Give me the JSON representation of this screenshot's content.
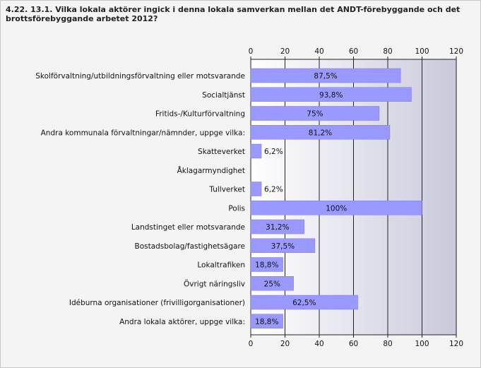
{
  "chart_data": {
    "type": "bar",
    "orientation": "horizontal",
    "title": "4.22. 13.1. Vilka lokala aktörer ingick i denna lokala samverkan mellan det ANDT-förebyggande och det brottsförebyggande arbetet 2012?",
    "categories": [
      "Skolförvaltning/utbildningsförvaltning eller motsvarande",
      "Socialtjänst",
      "Fritids-/Kulturförvaltning",
      "Andra kommunala förvaltningar/nämnder, uppge vilka:",
      "Skatteverket",
      "Åklagarmyndighet",
      "Tullverket",
      "Polis",
      "Landstinget eller motsvarande",
      "Bostadsbolag/fastighetsägare",
      "Lokaltrafiken",
      "Övrigt näringsliv",
      "Idéburna organisationer (frivilligorganisationer)",
      "Andra lokala aktörer, uppge vilka:"
    ],
    "values": [
      87.5,
      93.8,
      75,
      81.2,
      6.2,
      0,
      6.2,
      100,
      31.2,
      37.5,
      18.8,
      25,
      62.5,
      18.8
    ],
    "value_labels": [
      "87,5%",
      "93,8%",
      "75%",
      "81,2%",
      "6,2%",
      "",
      "6,2%",
      "100%",
      "31,2%",
      "37,5%",
      "18,8%",
      "25%",
      "62,5%",
      "18,8%"
    ],
    "xlim": [
      0,
      120
    ],
    "xticks": [
      "0",
      "20",
      "40",
      "60",
      "80",
      "100",
      "120"
    ],
    "tick_values": [
      0,
      20,
      40,
      60,
      80,
      100,
      120
    ],
    "axis_ticks_top_and_bottom": true,
    "grid": true,
    "colors": {
      "bar": "#9999ff",
      "bar_edge": "#7b7be0",
      "plot_bg_left": "#ffffff",
      "plot_bg_right": "#c9c9dc",
      "grid": "#222222"
    }
  }
}
